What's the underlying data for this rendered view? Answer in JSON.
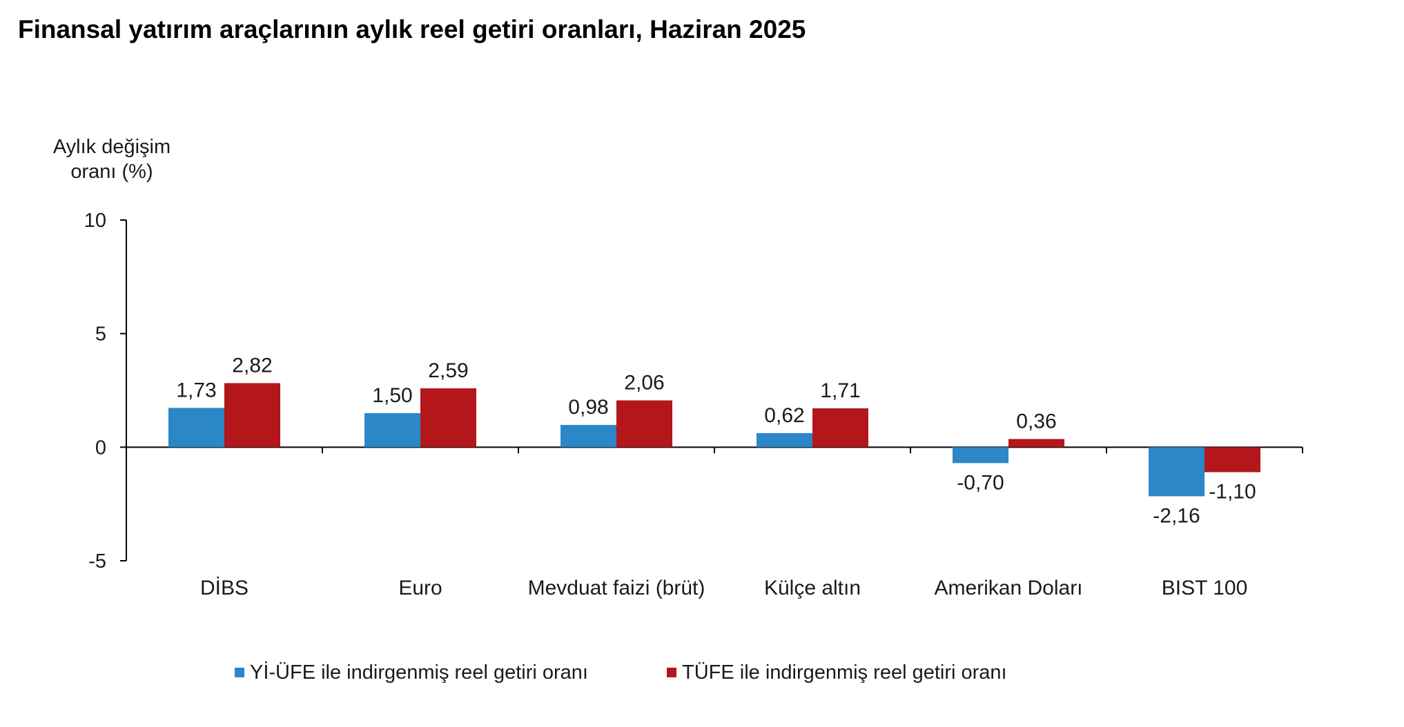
{
  "chart_data": {
    "type": "bar",
    "title": "Finansal yatırım araçlarının aylık reel getiri oranları, Haziran 2025",
    "ylabel_lines": [
      "Aylık değişim",
      "oranı (%)"
    ],
    "xlabel": "",
    "ylim": [
      -5,
      10
    ],
    "yticks": [
      10,
      5,
      0,
      -5
    ],
    "grid": false,
    "legend_position": "bottom",
    "categories": [
      "DİBS",
      "Euro",
      "Mevduat faizi (brüt)",
      "Külçe altın",
      "Amerikan Doları",
      "BIST 100"
    ],
    "series": [
      {
        "name": "Yİ-ÜFE ile indirgenmiş reel getiri oranı",
        "color": "#2b87c8",
        "values": [
          1.73,
          1.5,
          0.98,
          0.62,
          -0.7,
          -2.16
        ],
        "labels": [
          "1,73",
          "1,50",
          "0,98",
          "0,62",
          "-0,70",
          "-2,16"
        ]
      },
      {
        "name": "TÜFE ile indirgenmiş reel getiri oranı",
        "color": "#b3161b",
        "values": [
          2.82,
          2.59,
          2.06,
          1.71,
          0.36,
          -1.1
        ],
        "labels": [
          "2,82",
          "2,59",
          "2,06",
          "1,71",
          "0,36",
          "-1,10"
        ]
      }
    ]
  }
}
